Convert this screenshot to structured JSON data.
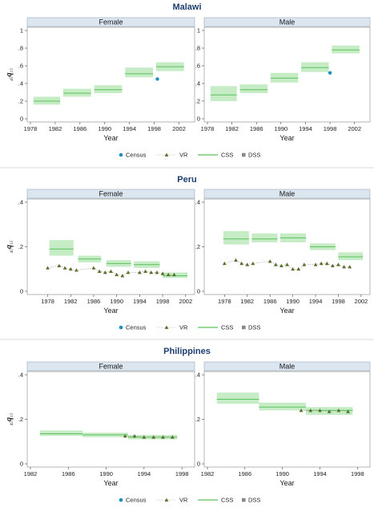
{
  "colors": {
    "band_fill": "#c6ecc6",
    "band_line": "#5cc05c",
    "vr_marker": "#5b6e2a",
    "census": "#1b8fc0",
    "dss": "#888888",
    "strip_bg": "#dce6f0",
    "title": "#1c3f6e",
    "separator": "#cccccc"
  },
  "legend": {
    "census": "Census",
    "vr": "VR",
    "css": "CSS",
    "dss": "DSS"
  },
  "chart_data": [
    {
      "type": "line",
      "title": "Malawi",
      "xlabel": "Year",
      "ylabel": "45q15",
      "ylim": [
        0,
        1
      ],
      "yticks": [
        0,
        0.2,
        0.4,
        0.6,
        0.8,
        1
      ],
      "yticklabels": [
        "0",
        ".2",
        ".4",
        ".6",
        ".8",
        "1"
      ],
      "xlim": [
        1978,
        2004
      ],
      "xticks": [
        1978,
        1982,
        1986,
        1990,
        1994,
        1998,
        2002
      ],
      "panels": [
        {
          "label": "Female",
          "css": [
            {
              "x0": 1978.5,
              "x1": 1982.8,
              "y": 0.2,
              "lo": 0.16,
              "hi": 0.25
            },
            {
              "x0": 1983.3,
              "x1": 1987.8,
              "y": 0.29,
              "lo": 0.25,
              "hi": 0.34
            },
            {
              "x0": 1988.3,
              "x1": 1992.8,
              "y": 0.33,
              "lo": 0.29,
              "hi": 0.38
            },
            {
              "x0": 1993.3,
              "x1": 1997.8,
              "y": 0.51,
              "lo": 0.47,
              "hi": 0.58
            },
            {
              "x0": 1998.3,
              "x1": 2002.8,
              "y": 0.59,
              "lo": 0.54,
              "hi": 0.64
            }
          ],
          "vr": [],
          "census": [
            {
              "x": 1998.5,
              "y": 0.45
            }
          ]
        },
        {
          "label": "Male",
          "css": [
            {
              "x0": 1978.5,
              "x1": 1982.8,
              "y": 0.27,
              "lo": 0.2,
              "hi": 0.37
            },
            {
              "x0": 1983.3,
              "x1": 1987.8,
              "y": 0.33,
              "lo": 0.29,
              "hi": 0.39
            },
            {
              "x0": 1988.3,
              "x1": 1992.8,
              "y": 0.46,
              "lo": 0.41,
              "hi": 0.52
            },
            {
              "x0": 1993.3,
              "x1": 1997.8,
              "y": 0.58,
              "lo": 0.53,
              "hi": 0.64
            },
            {
              "x0": 1998.3,
              "x1": 2002.8,
              "y": 0.78,
              "lo": 0.74,
              "hi": 0.83
            }
          ],
          "vr": [],
          "census": [
            {
              "x": 1998.0,
              "y": 0.52
            }
          ]
        }
      ]
    },
    {
      "type": "line",
      "title": "Peru",
      "xlabel": "Year",
      "ylabel": "45q15",
      "ylim": [
        0,
        0.4
      ],
      "yticks": [
        0,
        0.2,
        0.4
      ],
      "yticklabels": [
        "0",
        ".2",
        ".4"
      ],
      "xlim": [
        1975,
        2003
      ],
      "xticks": [
        1978,
        1982,
        1986,
        1990,
        1994,
        1998,
        2002
      ],
      "panels": [
        {
          "label": "Female",
          "css": [
            {
              "x0": 1978.3,
              "x1": 1982.5,
              "y": 0.19,
              "lo": 0.16,
              "hi": 0.23
            },
            {
              "x0": 1983.3,
              "x1": 1987.3,
              "y": 0.145,
              "lo": 0.13,
              "hi": 0.16
            },
            {
              "x0": 1988.2,
              "x1": 1992.5,
              "y": 0.125,
              "lo": 0.11,
              "hi": 0.14
            },
            {
              "x0": 1993.0,
              "x1": 1997.5,
              "y": 0.12,
              "lo": 0.105,
              "hi": 0.135
            },
            {
              "x0": 1998.0,
              "x1": 2002.3,
              "y": 0.07,
              "lo": 0.06,
              "hi": 0.085
            }
          ],
          "vr": [
            {
              "x": 1978,
              "y": 0.105
            },
            {
              "x": 1980,
              "y": 0.115
            },
            {
              "x": 1981,
              "y": 0.105
            },
            {
              "x": 1982,
              "y": 0.1
            },
            {
              "x": 1983,
              "y": 0.095
            },
            {
              "x": 1986,
              "y": 0.105
            },
            {
              "x": 1987,
              "y": 0.09
            },
            {
              "x": 1988,
              "y": 0.085
            },
            {
              "x": 1989,
              "y": 0.09
            },
            {
              "x": 1990,
              "y": 0.075
            },
            {
              "x": 1991,
              "y": 0.07
            },
            {
              "x": 1992,
              "y": 0.085
            },
            {
              "x": 1994,
              "y": 0.085
            },
            {
              "x": 1995,
              "y": 0.09
            },
            {
              "x": 1996,
              "y": 0.085
            },
            {
              "x": 1997,
              "y": 0.085
            },
            {
              "x": 1998,
              "y": 0.08
            },
            {
              "x": 1999,
              "y": 0.075
            },
            {
              "x": 2000,
              "y": 0.075
            }
          ],
          "census": []
        },
        {
          "label": "Male",
          "css": [
            {
              "x0": 1977.8,
              "x1": 1982.3,
              "y": 0.235,
              "lo": 0.21,
              "hi": 0.27
            },
            {
              "x0": 1982.8,
              "x1": 1987.3,
              "y": 0.235,
              "lo": 0.22,
              "hi": 0.26
            },
            {
              "x0": 1987.8,
              "x1": 1992.3,
              "y": 0.24,
              "lo": 0.22,
              "hi": 0.26
            },
            {
              "x0": 1993.0,
              "x1": 1997.5,
              "y": 0.2,
              "lo": 0.185,
              "hi": 0.215
            },
            {
              "x0": 1998.0,
              "x1": 2002.3,
              "y": 0.155,
              "lo": 0.14,
              "hi": 0.175
            }
          ],
          "vr": [
            {
              "x": 1978,
              "y": 0.125
            },
            {
              "x": 1980,
              "y": 0.14
            },
            {
              "x": 1981,
              "y": 0.125
            },
            {
              "x": 1982,
              "y": 0.12
            },
            {
              "x": 1983,
              "y": 0.125
            },
            {
              "x": 1986,
              "y": 0.135
            },
            {
              "x": 1987,
              "y": 0.12
            },
            {
              "x": 1988,
              "y": 0.115
            },
            {
              "x": 1989,
              "y": 0.12
            },
            {
              "x": 1990,
              "y": 0.1
            },
            {
              "x": 1991,
              "y": 0.1
            },
            {
              "x": 1992,
              "y": 0.12
            },
            {
              "x": 1994,
              "y": 0.12
            },
            {
              "x": 1995,
              "y": 0.125
            },
            {
              "x": 1996,
              "y": 0.125
            },
            {
              "x": 1997,
              "y": 0.115
            },
            {
              "x": 1998,
              "y": 0.12
            },
            {
              "x": 1999,
              "y": 0.11
            },
            {
              "x": 2000,
              "y": 0.11
            }
          ],
          "census": []
        }
      ]
    },
    {
      "type": "line",
      "title": "Philippines",
      "xlabel": "Year",
      "ylabel": "45q15",
      "ylim": [
        0,
        0.4
      ],
      "yticks": [
        0,
        0.2,
        0.4
      ],
      "yticklabels": [
        "0",
        ".2",
        ".4"
      ],
      "xlim": [
        1982,
        1999
      ],
      "xticks": [
        1982,
        1986,
        1990,
        1994,
        1998
      ],
      "panels": [
        {
          "label": "Female",
          "css": [
            {
              "x0": 1983,
              "x1": 1987.5,
              "y": 0.135,
              "lo": 0.125,
              "hi": 0.15
            },
            {
              "x0": 1987.5,
              "x1": 1992.3,
              "y": 0.13,
              "lo": 0.12,
              "hi": 0.14
            },
            {
              "x0": 1992.3,
              "x1": 1997.5,
              "y": 0.12,
              "lo": 0.11,
              "hi": 0.13
            }
          ],
          "vr": [
            {
              "x": 1992,
              "y": 0.125
            },
            {
              "x": 1993,
              "y": 0.125
            },
            {
              "x": 1994,
              "y": 0.12
            },
            {
              "x": 1995,
              "y": 0.12
            },
            {
              "x": 1996,
              "y": 0.12
            },
            {
              "x": 1997,
              "y": 0.12
            }
          ],
          "census": []
        },
        {
          "label": "Male",
          "css": [
            {
              "x0": 1983,
              "x1": 1987.5,
              "y": 0.29,
              "lo": 0.27,
              "hi": 0.32
            },
            {
              "x0": 1987.5,
              "x1": 1992.5,
              "y": 0.255,
              "lo": 0.24,
              "hi": 0.275
            },
            {
              "x0": 1992.5,
              "x1": 1997.5,
              "y": 0.24,
              "lo": 0.22,
              "hi": 0.255
            }
          ],
          "vr": [
            {
              "x": 1992,
              "y": 0.24
            },
            {
              "x": 1993,
              "y": 0.24
            },
            {
              "x": 1994,
              "y": 0.24
            },
            {
              "x": 1995,
              "y": 0.235
            },
            {
              "x": 1996,
              "y": 0.24
            },
            {
              "x": 1997,
              "y": 0.235
            }
          ],
          "census": []
        }
      ]
    }
  ]
}
